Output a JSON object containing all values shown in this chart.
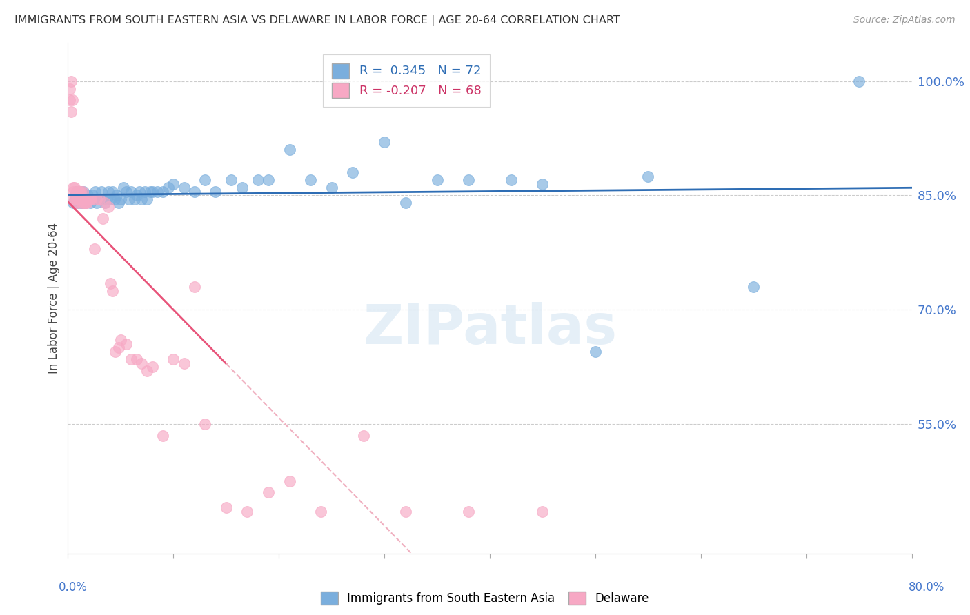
{
  "title": "IMMIGRANTS FROM SOUTH EASTERN ASIA VS DELAWARE IN LABOR FORCE | AGE 20-64 CORRELATION CHART",
  "source": "Source: ZipAtlas.com",
  "ylabel": "In Labor Force | Age 20-64",
  "ytick_labels": [
    "100.0%",
    "85.0%",
    "70.0%",
    "55.0%"
  ],
  "ytick_values": [
    1.0,
    0.85,
    0.7,
    0.55
  ],
  "xmin": 0.0,
  "xmax": 0.8,
  "ymin": 0.38,
  "ymax": 1.05,
  "blue_R": 0.345,
  "blue_N": 72,
  "pink_R": -0.207,
  "pink_N": 68,
  "legend_label_blue": "Immigrants from South Eastern Asia",
  "legend_label_pink": "Delaware",
  "blue_color": "#7aaedd",
  "pink_color": "#f7a8c4",
  "blue_line_color": "#2e6db4",
  "pink_line_color": "#e8547a",
  "pink_dash_color": "#f0b0c0",
  "watermark": "ZIPatlas",
  "blue_scatter_x": [
    0.005,
    0.007,
    0.008,
    0.009,
    0.01,
    0.011,
    0.012,
    0.013,
    0.014,
    0.015,
    0.016,
    0.017,
    0.018,
    0.019,
    0.02,
    0.021,
    0.022,
    0.023,
    0.025,
    0.026,
    0.027,
    0.028,
    0.03,
    0.032,
    0.033,
    0.035,
    0.037,
    0.038,
    0.04,
    0.042,
    0.044,
    0.046,
    0.048,
    0.05,
    0.053,
    0.055,
    0.058,
    0.06,
    0.063,
    0.065,
    0.068,
    0.07,
    0.073,
    0.075,
    0.078,
    0.08,
    0.085,
    0.09,
    0.095,
    0.1,
    0.11,
    0.12,
    0.13,
    0.14,
    0.155,
    0.165,
    0.18,
    0.19,
    0.21,
    0.23,
    0.25,
    0.27,
    0.3,
    0.32,
    0.35,
    0.38,
    0.42,
    0.45,
    0.5,
    0.55,
    0.65,
    0.75
  ],
  "blue_scatter_y": [
    0.84,
    0.85,
    0.855,
    0.84,
    0.845,
    0.85,
    0.84,
    0.855,
    0.84,
    0.855,
    0.845,
    0.84,
    0.845,
    0.85,
    0.845,
    0.84,
    0.845,
    0.85,
    0.845,
    0.855,
    0.84,
    0.845,
    0.845,
    0.855,
    0.845,
    0.84,
    0.845,
    0.855,
    0.845,
    0.855,
    0.845,
    0.85,
    0.84,
    0.845,
    0.86,
    0.855,
    0.845,
    0.855,
    0.845,
    0.85,
    0.855,
    0.845,
    0.855,
    0.845,
    0.855,
    0.855,
    0.855,
    0.855,
    0.86,
    0.865,
    0.86,
    0.855,
    0.87,
    0.855,
    0.87,
    0.86,
    0.87,
    0.87,
    0.91,
    0.87,
    0.86,
    0.88,
    0.92,
    0.84,
    0.87,
    0.87,
    0.87,
    0.865,
    0.645,
    0.875,
    0.73,
    1.0
  ],
  "pink_scatter_x": [
    0.002,
    0.002,
    0.003,
    0.003,
    0.004,
    0.004,
    0.005,
    0.005,
    0.006,
    0.006,
    0.007,
    0.007,
    0.008,
    0.008,
    0.009,
    0.009,
    0.009,
    0.01,
    0.01,
    0.011,
    0.011,
    0.011,
    0.012,
    0.012,
    0.013,
    0.013,
    0.014,
    0.014,
    0.015,
    0.015,
    0.016,
    0.017,
    0.018,
    0.019,
    0.02,
    0.021,
    0.022,
    0.025,
    0.027,
    0.03,
    0.033,
    0.035,
    0.038,
    0.04,
    0.042,
    0.045,
    0.048,
    0.05,
    0.055,
    0.06,
    0.065,
    0.07,
    0.075,
    0.08,
    0.09,
    0.1,
    0.11,
    0.12,
    0.13,
    0.15,
    0.17,
    0.19,
    0.21,
    0.24,
    0.28,
    0.32,
    0.38,
    0.45
  ],
  "pink_scatter_y": [
    0.975,
    0.99,
    0.96,
    1.0,
    0.975,
    0.845,
    0.86,
    0.855,
    0.845,
    0.86,
    0.85,
    0.84,
    0.845,
    0.855,
    0.845,
    0.855,
    0.84,
    0.845,
    0.855,
    0.845,
    0.845,
    0.855,
    0.845,
    0.855,
    0.845,
    0.84,
    0.845,
    0.855,
    0.845,
    0.84,
    0.84,
    0.84,
    0.84,
    0.845,
    0.845,
    0.845,
    0.845,
    0.78,
    0.845,
    0.845,
    0.82,
    0.84,
    0.835,
    0.735,
    0.725,
    0.645,
    0.65,
    0.66,
    0.655,
    0.635,
    0.635,
    0.63,
    0.62,
    0.625,
    0.535,
    0.635,
    0.63,
    0.73,
    0.55,
    0.44,
    0.435,
    0.46,
    0.475,
    0.435,
    0.535,
    0.435,
    0.435,
    0.435
  ]
}
